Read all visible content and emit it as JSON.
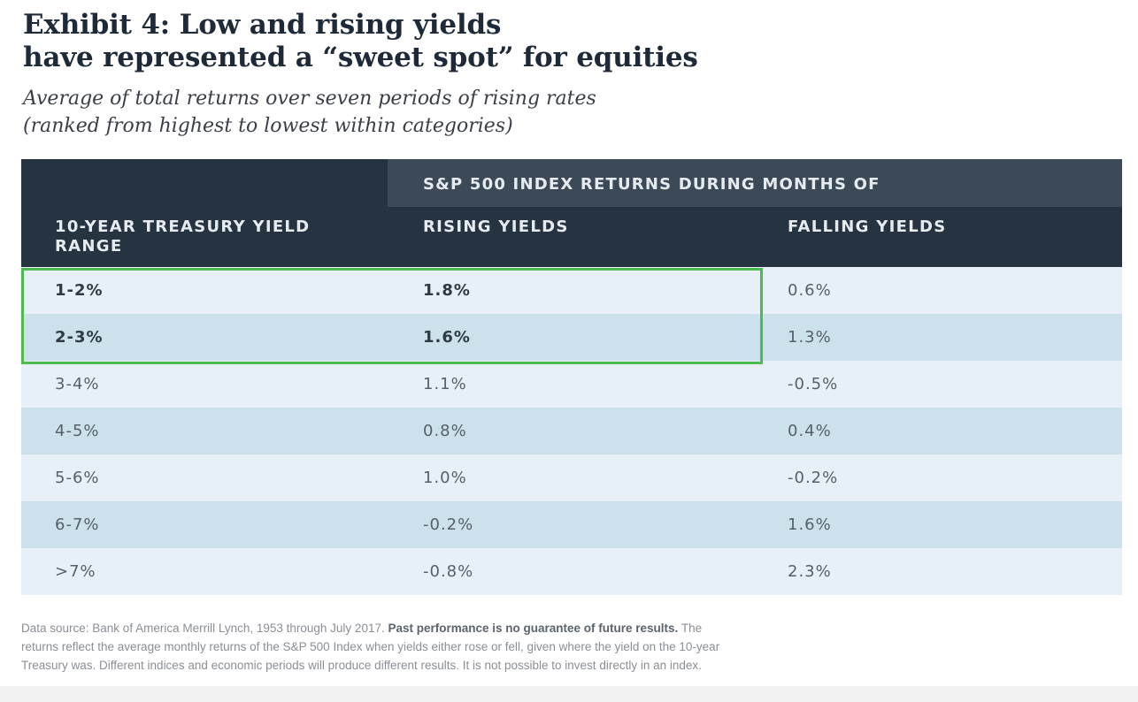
{
  "title_line1": "Exhibit 4: Low and rising yields",
  "title_line2": "have represented a “sweet spot” for equities",
  "subtitle_line1": "Average of total returns over seven periods of rising rates",
  "subtitle_line2": "(ranked from highest to lowest within categories)",
  "header": {
    "group": "S&P 500 INDEX RETURNS DURING MONTHS OF",
    "col1": "10-YEAR TREASURY YIELD RANGE",
    "col2": "RISING YIELDS",
    "col3": "FALLING YIELDS"
  },
  "rows": [
    {
      "range": "1-2%",
      "rising": "1.8%",
      "falling": "0.6%"
    },
    {
      "range": "2-3%",
      "rising": "1.6%",
      "falling": "1.3%"
    },
    {
      "range": "3-4%",
      "rising": "1.1%",
      "falling": "-0.5%"
    },
    {
      "range": "4-5%",
      "rising": "0.8%",
      "falling": "0.4%"
    },
    {
      "range": "5-6%",
      "rising": "1.0%",
      "falling": "-0.2%"
    },
    {
      "range": "6-7%",
      "rising": "-0.2%",
      "falling": "1.6%"
    },
    {
      "range": ">7%",
      "rising": "-0.8%",
      "falling": "2.3%"
    }
  ],
  "footnote": {
    "line1_pre": "Data source: Bank of America Merrill Lynch, 1953 through July 2017. ",
    "line1_bold": "Past performance is no guarantee of future results.",
    "line1_post": " The",
    "line2": "returns reflect the average monthly returns of the S&P 500 Index when yields either rose or fell, given where the yield on the 10-year",
    "line3": "Treasury was. Different indices and economic periods will produce different results. It is not possible to invest directly in an index."
  },
  "colors": {
    "header_dark": "#263442",
    "header_group": "#3c4a58",
    "row_light": "#e6f0f6",
    "row_dark": "#cce1ec",
    "highlight": "#4dbb4f"
  },
  "chart_data": {
    "type": "table",
    "title": "Exhibit 4: Low and rising yields have represented a “sweet spot” for equities",
    "subtitle": "Average of total returns over seven periods of rising rates (ranked from highest to lowest within categories)",
    "columns": [
      "10-YEAR TREASURY YIELD RANGE",
      "RISING YIELDS",
      "FALLING YIELDS"
    ],
    "column_group": "S&P 500 INDEX RETURNS DURING MONTHS OF",
    "categories": [
      "1-2%",
      "2-3%",
      "3-4%",
      "4-5%",
      "5-6%",
      "6-7%",
      ">7%"
    ],
    "series": [
      {
        "name": "RISING YIELDS",
        "values": [
          1.8,
          1.6,
          1.1,
          0.8,
          1.0,
          -0.2,
          -0.8
        ]
      },
      {
        "name": "FALLING YIELDS",
        "values": [
          0.6,
          1.3,
          -0.5,
          0.4,
          -0.2,
          1.6,
          2.3
        ]
      }
    ],
    "highlighted_rows": [
      "1-2%",
      "2-3%"
    ]
  }
}
